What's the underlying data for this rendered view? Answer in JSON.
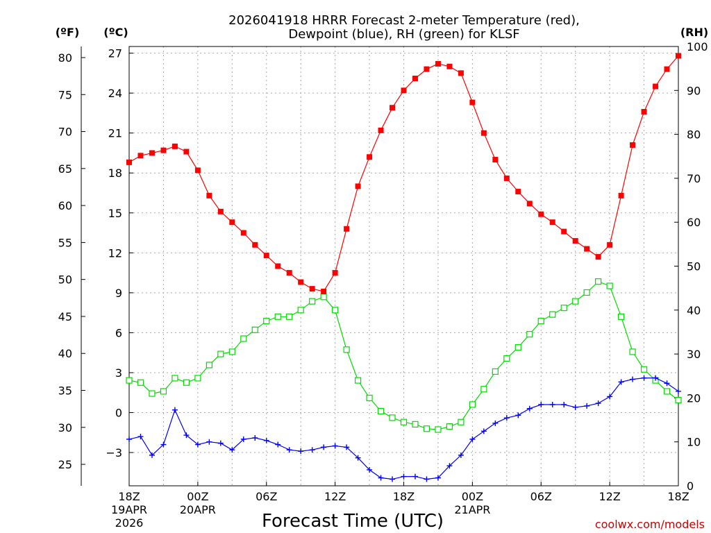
{
  "chart_data": {
    "type": "line",
    "title_line1": "2026041918 HRRR Forecast 2-meter Temperature (red),",
    "title_line2": "Dewpoint (blue), RH (green) for KLSF",
    "xlabel": "Forecast Time (UTC)",
    "credit": "coolwx.com/models",
    "left_unit_f": "(ºF)",
    "left_unit_c": "(ºC)",
    "right_unit": "(RH)",
    "colors": {
      "temperature": "#ff0000",
      "dewpoint": "#0000ff",
      "rh": "#00dd00",
      "grid": "#aaaaaa",
      "credit": "#cc0000"
    },
    "x_range": [
      0,
      48
    ],
    "x_ticks": [
      {
        "hour": 0,
        "label": "18Z",
        "date1": "19APR",
        "date2": "2026"
      },
      {
        "hour": 6,
        "label": "00Z",
        "date1": "20APR",
        "date2": ""
      },
      {
        "hour": 12,
        "label": "06Z",
        "date1": "",
        "date2": ""
      },
      {
        "hour": 18,
        "label": "12Z",
        "date1": "",
        "date2": ""
      },
      {
        "hour": 24,
        "label": "18Z",
        "date1": "",
        "date2": ""
      },
      {
        "hour": 30,
        "label": "00Z",
        "date1": "21APR",
        "date2": ""
      },
      {
        "hour": 36,
        "label": "06Z",
        "date1": "",
        "date2": ""
      },
      {
        "hour": 42,
        "label": "12Z",
        "date1": "",
        "date2": ""
      },
      {
        "hour": 48,
        "label": "18Z",
        "date1": "",
        "date2": ""
      }
    ],
    "celsius_range": [
      -5.5,
      27.5
    ],
    "celsius_ticks": [
      27,
      24,
      21,
      18,
      15,
      12,
      9,
      6,
      3,
      0,
      -3
    ],
    "celsius_tick_labels": [
      "27",
      "24",
      "21",
      "18",
      "15",
      "12",
      "9",
      "6",
      "3",
      "0",
      "−3"
    ],
    "fahrenheit_ticks": [
      80,
      75,
      70,
      65,
      60,
      55,
      50,
      45,
      40,
      35,
      30,
      25
    ],
    "fahrenheit_tick_labels": [
      "80",
      "75",
      "70",
      "65",
      "60",
      "55",
      "50",
      "45",
      "40",
      "35",
      "30",
      "25"
    ],
    "rh_range": [
      0,
      100
    ],
    "rh_ticks": [
      100,
      90,
      80,
      70,
      60,
      50,
      40,
      30,
      20,
      10,
      0
    ],
    "rh_tick_labels": [
      "100",
      "90",
      "80",
      "70",
      "60",
      "50",
      "40",
      "30",
      "20",
      "10",
      "0"
    ],
    "series": [
      {
        "name": "Temperature",
        "unit": "C",
        "values": [
          18.8,
          19.3,
          19.5,
          19.7,
          20.0,
          19.6,
          18.2,
          16.3,
          15.1,
          14.3,
          13.5,
          12.6,
          11.8,
          11.0,
          10.5,
          9.8,
          9.3,
          9.1,
          10.5,
          13.8,
          17.0,
          19.2,
          21.2,
          22.9,
          24.2,
          25.1,
          25.8,
          26.2,
          26.0,
          25.5,
          23.3,
          21.0,
          19.0,
          17.6,
          16.6,
          15.7,
          14.9,
          14.3,
          13.6,
          12.9,
          12.3,
          11.7,
          12.6,
          16.3,
          20.1,
          22.6,
          24.5,
          25.8,
          26.8
        ]
      },
      {
        "name": "Dewpoint",
        "unit": "C",
        "values": [
          -2.0,
          -1.8,
          -3.2,
          -2.4,
          0.2,
          -1.7,
          -2.4,
          -2.2,
          -2.3,
          -2.8,
          -2.0,
          -1.9,
          -2.1,
          -2.4,
          -2.8,
          -2.9,
          -2.8,
          -2.6,
          -2.5,
          -2.6,
          -3.4,
          -4.3,
          -4.9,
          -5.0,
          -4.8,
          -4.8,
          -5.0,
          -4.9,
          -4.0,
          -3.2,
          -2.0,
          -1.4,
          -0.8,
          -0.4,
          -0.2,
          0.3,
          0.6,
          0.6,
          0.6,
          0.4,
          0.5,
          0.7,
          1.2,
          2.3,
          2.5,
          2.6,
          2.6,
          2.2,
          1.6
        ]
      },
      {
        "name": "RH",
        "unit": "%",
        "values": [
          24.0,
          23.5,
          21.0,
          21.5,
          24.5,
          23.5,
          24.5,
          27.5,
          30.0,
          30.5,
          33.5,
          35.5,
          37.5,
          38.5,
          38.5,
          40.0,
          42.0,
          43.0,
          40.0,
          31.0,
          24.0,
          20.0,
          17.0,
          15.5,
          14.5,
          14.0,
          13.0,
          12.8,
          13.5,
          14.5,
          18.5,
          22.0,
          26.0,
          29.0,
          31.5,
          34.5,
          37.5,
          39.0,
          40.5,
          42.0,
          44.0,
          46.5,
          45.5,
          38.5,
          30.5,
          26.5,
          24.0,
          21.5,
          19.5
        ]
      }
    ]
  }
}
